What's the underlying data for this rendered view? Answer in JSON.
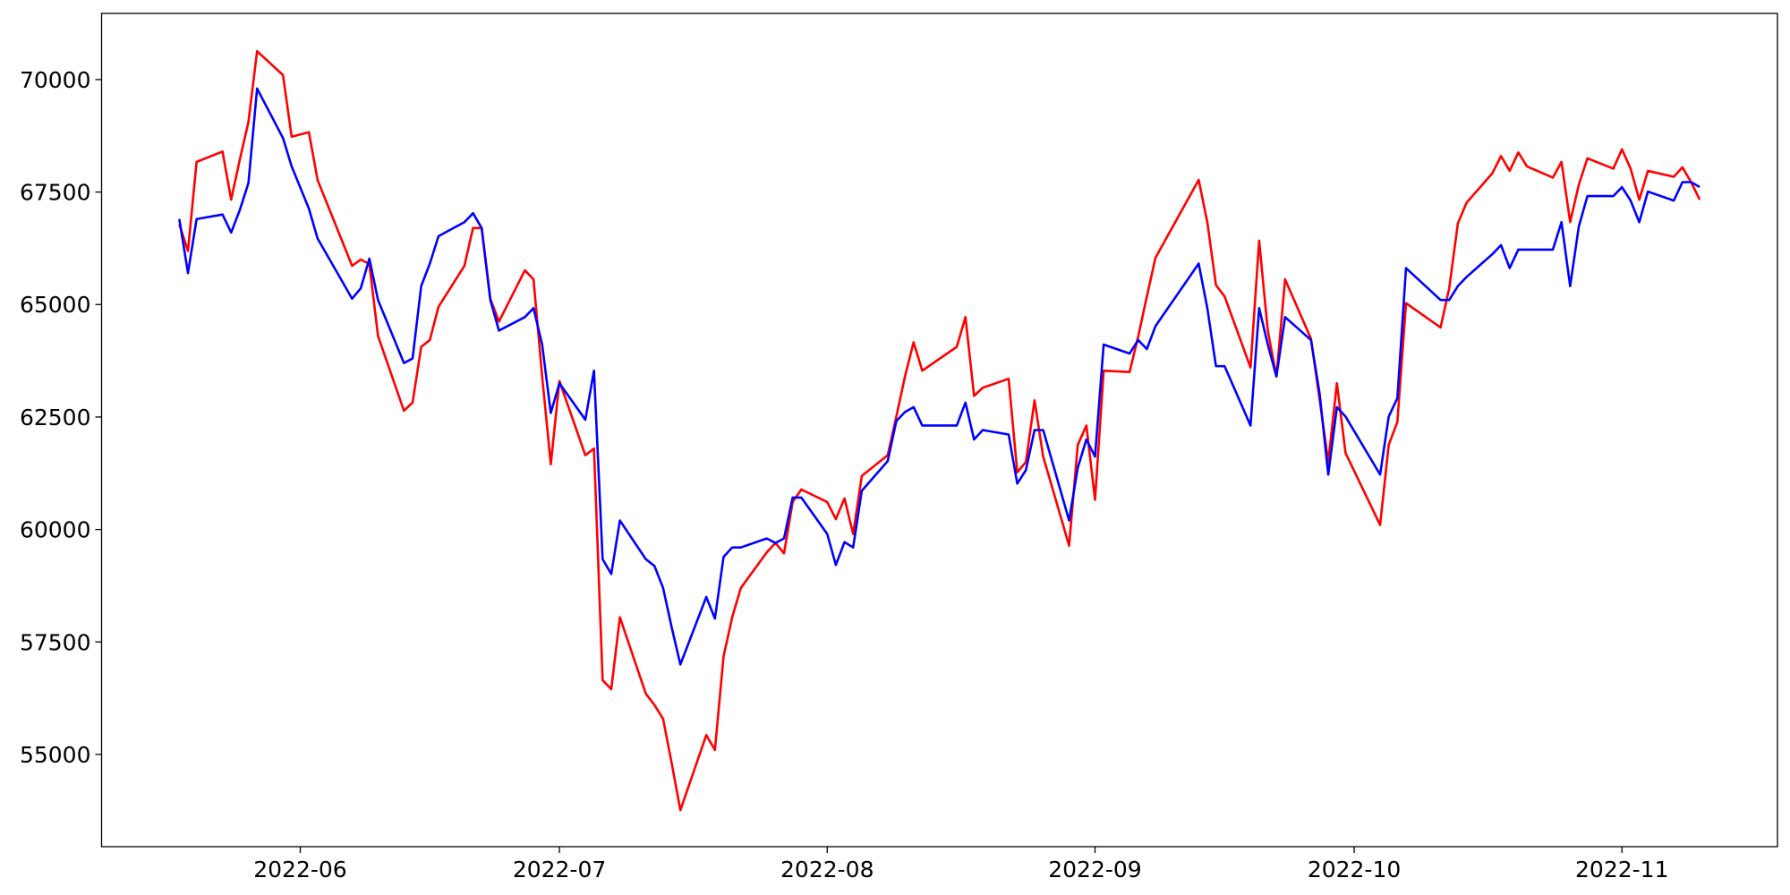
{
  "chart_data": {
    "type": "line",
    "x": [
      "2022-05-18",
      "2022-05-19",
      "2022-05-20",
      "2022-05-23",
      "2022-05-24",
      "2022-05-25",
      "2022-05-26",
      "2022-05-27",
      "2022-05-30",
      "2022-05-31",
      "2022-06-02",
      "2022-06-03",
      "2022-06-07",
      "2022-06-08",
      "2022-06-09",
      "2022-06-10",
      "2022-06-13",
      "2022-06-14",
      "2022-06-15",
      "2022-06-16",
      "2022-06-17",
      "2022-06-20",
      "2022-06-21",
      "2022-06-22",
      "2022-06-23",
      "2022-06-24",
      "2022-06-27",
      "2022-06-28",
      "2022-06-29",
      "2022-06-30",
      "2022-07-01",
      "2022-07-04",
      "2022-07-05",
      "2022-07-06",
      "2022-07-07",
      "2022-07-08",
      "2022-07-11",
      "2022-07-12",
      "2022-07-13",
      "2022-07-14",
      "2022-07-15",
      "2022-07-18",
      "2022-07-19",
      "2022-07-20",
      "2022-07-21",
      "2022-07-22",
      "2022-07-25",
      "2022-07-26",
      "2022-07-27",
      "2022-07-28",
      "2022-07-29",
      "2022-08-01",
      "2022-08-02",
      "2022-08-03",
      "2022-08-04",
      "2022-08-05",
      "2022-08-08",
      "2022-08-09",
      "2022-08-10",
      "2022-08-11",
      "2022-08-12",
      "2022-08-16",
      "2022-08-17",
      "2022-08-18",
      "2022-08-19",
      "2022-08-22",
      "2022-08-23",
      "2022-08-24",
      "2022-08-25",
      "2022-08-26",
      "2022-08-29",
      "2022-08-30",
      "2022-08-31",
      "2022-09-01",
      "2022-09-02",
      "2022-09-05",
      "2022-09-06",
      "2022-09-07",
      "2022-09-08",
      "2022-09-13",
      "2022-09-14",
      "2022-09-15",
      "2022-09-16",
      "2022-09-19",
      "2022-09-20",
      "2022-09-21",
      "2022-09-22",
      "2022-09-23",
      "2022-09-26",
      "2022-09-27",
      "2022-09-28",
      "2022-09-29",
      "2022-09-30",
      "2022-10-04",
      "2022-10-05",
      "2022-10-06",
      "2022-10-07",
      "2022-10-11",
      "2022-10-12",
      "2022-10-13",
      "2022-10-14",
      "2022-10-17",
      "2022-10-18",
      "2022-10-19",
      "2022-10-20",
      "2022-10-21",
      "2022-10-24",
      "2022-10-25",
      "2022-10-26",
      "2022-10-27",
      "2022-10-28",
      "2022-10-31",
      "2022-11-01",
      "2022-11-02",
      "2022-11-03",
      "2022-11-04",
      "2022-11-07",
      "2022-11-08",
      "2022-11-09",
      "2022-11-10"
    ],
    "series": [
      {
        "color": "#ff0000",
        "values": [
          66780,
          66190,
          68170,
          68400,
          67330,
          68220,
          69060,
          70630,
          70100,
          68730,
          68830,
          67770,
          65860,
          66000,
          65900,
          64300,
          62640,
          62820,
          64060,
          64210,
          64950,
          65860,
          66700,
          66700,
          65130,
          64620,
          65760,
          65560,
          63400,
          61450,
          63300,
          61650,
          61800,
          56650,
          56450,
          58050,
          56350,
          56100,
          55790,
          54800,
          53760,
          55430,
          55100,
          57180,
          58050,
          58700,
          59490,
          59700,
          59470,
          60610,
          60890,
          60610,
          60230,
          60690,
          59900,
          61190,
          61650,
          62510,
          63400,
          64160,
          63530,
          64060,
          64720,
          62970,
          63150,
          63350,
          61270,
          61500,
          62870,
          61620,
          59640,
          61880,
          62310,
          60660,
          63530,
          63500,
          64290,
          65180,
          66040,
          67770,
          66830,
          65430,
          65180,
          63600,
          66420,
          64420,
          63400,
          65560,
          64240,
          62890,
          61500,
          63250,
          61700,
          60100,
          61880,
          62390,
          65030,
          64490,
          65360,
          66800,
          67260,
          67920,
          68300,
          67970,
          68380,
          68070,
          67820,
          68170,
          66830,
          67660,
          68250,
          68020,
          68450,
          68020,
          67330,
          67970,
          67840,
          68050,
          67720,
          67330
        ]
      },
      {
        "color": "#0000ff",
        "values": [
          66900,
          65700,
          66900,
          67000,
          66600,
          67100,
          67700,
          69800,
          68700,
          68070,
          67130,
          66470,
          65130,
          65360,
          66020,
          65100,
          63700,
          63800,
          65410,
          65910,
          66520,
          66830,
          67030,
          66700,
          65100,
          64420,
          64720,
          64920,
          64110,
          62590,
          63250,
          62440,
          63530,
          59340,
          59010,
          60200,
          59340,
          59190,
          58700,
          57820,
          57000,
          58500,
          58020,
          59390,
          59600,
          59600,
          59800,
          59700,
          59800,
          60710,
          60710,
          59900,
          59210,
          59720,
          59600,
          60860,
          61520,
          62410,
          62610,
          62720,
          62310,
          62310,
          62820,
          62000,
          62210,
          62110,
          61020,
          61320,
          62210,
          62210,
          60200,
          61370,
          62000,
          61620,
          64110,
          63910,
          64210,
          64010,
          64520,
          65910,
          64920,
          63630,
          63630,
          62310,
          64920,
          64110,
          63400,
          64720,
          64210,
          63020,
          61220,
          62720,
          62510,
          61220,
          62510,
          62920,
          65810,
          65100,
          65100,
          65410,
          65610,
          66120,
          66320,
          65810,
          66220,
          66220,
          66220,
          66830,
          65410,
          66730,
          67410,
          67410,
          67610,
          67310,
          66830,
          67510,
          67310,
          67720,
          67720,
          67610
        ]
      }
    ],
    "xlim": [
      "2022-05-09",
      "2022-11-19"
    ],
    "xticks": [
      {
        "value": "2022-06-01",
        "label": "2022-06"
      },
      {
        "value": "2022-07-01",
        "label": "2022-07"
      },
      {
        "value": "2022-08-01",
        "label": "2022-08"
      },
      {
        "value": "2022-09-01",
        "label": "2022-09"
      },
      {
        "value": "2022-10-01",
        "label": "2022-10"
      },
      {
        "value": "2022-11-01",
        "label": "2022-11"
      }
    ],
    "ylim": [
      52950,
      71470
    ],
    "yticks": [
      55000,
      57500,
      60000,
      62500,
      65000,
      67500,
      70000
    ]
  }
}
